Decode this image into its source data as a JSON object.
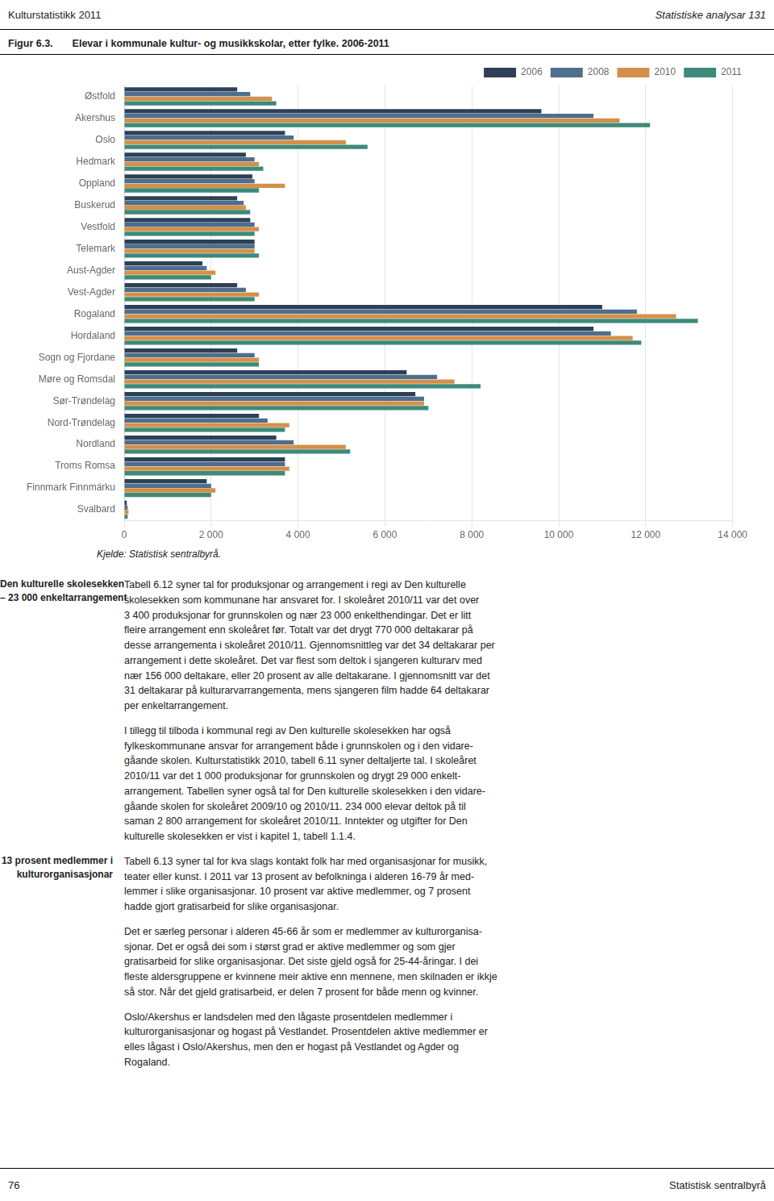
{
  "chart_data": {
    "type": "bar",
    "orientation": "horizontal",
    "title": "Figur 6.3.",
    "subtitle": "Elevar i kommunale kultur- og musikkskolar, etter fylke. 2006-2011",
    "categories": [
      "Østfold",
      "Akershus",
      "Oslo",
      "Hedmark",
      "Oppland",
      "Buskerud",
      "Vestfold",
      "Telemark",
      "Aust-Agder",
      "Vest-Agder",
      "Rogaland",
      "Hordaland",
      "Sogn og Fjordane",
      "Møre og Romsdal",
      "Sør-Trøndelag",
      "Nord-Trøndelag",
      "Nordland",
      "Troms Romsa",
      "Finnmark Finnmárku",
      "Svalbard"
    ],
    "series": [
      {
        "name": "2006",
        "color": "#2E4057",
        "values": [
          2600,
          9600,
          3700,
          2800,
          2950,
          2600,
          2900,
          3000,
          1800,
          2600,
          11000,
          10800,
          2600,
          6500,
          6700,
          3100,
          3500,
          3700,
          1900,
          60
        ]
      },
      {
        "name": "2008",
        "color": "#4E6F8E",
        "values": [
          2900,
          10800,
          3900,
          3000,
          3000,
          2750,
          3000,
          3000,
          1900,
          2800,
          11800,
          11200,
          3000,
          7200,
          6900,
          3300,
          3900,
          3700,
          2000,
          80
        ]
      },
      {
        "name": "2010",
        "color": "#D4904A",
        "values": [
          3400,
          11400,
          5100,
          3100,
          3700,
          2800,
          3100,
          3000,
          2100,
          3100,
          12700,
          11700,
          3100,
          7600,
          6900,
          3800,
          5100,
          3800,
          2100,
          100
        ]
      },
      {
        "name": "2011",
        "color": "#3D8A7A",
        "values": [
          3500,
          12100,
          5600,
          3200,
          3100,
          2900,
          3000,
          3100,
          2000,
          3000,
          13200,
          11900,
          3100,
          8200,
          7000,
          3700,
          5200,
          3700,
          2000,
          80
        ]
      }
    ],
    "xlim": [
      0,
      14000
    ],
    "xticks": [
      0,
      {
        "value": 2000,
        "label": "2 000"
      },
      {
        "value": 4000,
        "label": "4 000"
      },
      {
        "value": 6000,
        "label": "6 000"
      },
      {
        "value": 8000,
        "label": "8 000"
      },
      {
        "value": 10000,
        "label": "10 000"
      },
      {
        "value": 12000,
        "label": "12 000"
      },
      {
        "value": 14000,
        "label": "14 000"
      }
    ],
    "grid": true,
    "legend": "upper right",
    "annotations": [
      "Kulturstatistikk 2011",
      "Statistiske analysar 131",
      "Kjelde: Statistisk sentralbyrå.",
      "Den kulturelle skolesekken\n– 23 000 enkeltarrangement",
      "Tabell 6.12 syner tal for produksjonar og arrangement i regi av Den kulturelle\nskolesekken som kommunane har ansvaret for. I skoleåret 2010/11 var det over\n3 400 produksjonar for grunnskolen og nær 23 000 enkelthendingar. Det er litt\nfleire arrangement enn skoleåret før. Totalt var det drygt 770 000 deltakarar på\ndesse arrangementa i skoleåret 2010/11. Gjennomsnittleg var det 34 deltakarar per\narrangement i dette skoleåret. Det var flest som deltok i sjangeren kulturarv med\nnær 156 000 deltakare, eller 20 prosent av alle deltakarane. I gjennomsnitt var det\n31 deltakarar på kulturarvarrangementa, mens sjangeren film hadde 64 deltakarar\nper enkeltarrangement.",
      "I tillegg til tilboda i kommunal regi av Den kulturelle skolesekken har også\nfylkeskommunane ansvar for arrangement både i grunnskolen og i den vidare-\ngåande skolen. Kulturstatistikk 2010, tabell 6.11 syner deltaljerte tal. I skoleåret\n2010/11 var det 1 000 produksjonar for grunnskolen og drygt 29 000 enkelt-\narrangement. Tabellen syner også tal for Den kulturelle skolesekken i den vidare-\ngåande skolen for skoleåret 2009/10 og 2010/11. 234 000 elevar deltok på til\nsaman 2 800 arrangement for skoleåret 2010/11. Inntekter og utgifter for Den\nkulturelle skolesekken er vist i kapitel 1, tabell 1.1.4.",
      "13 prosent medlemmer i\nkulturorganisasjonar",
      "Tabell 6.13 syner tal for kva slags kontakt folk har med organisasjonar for musikk,\nteater eller kunst. I 2011 var 13 prosent av befolkninga i alderen 16-79 år med-\nlemmer i slike organisasjonar. 10 prosent var aktive medlemmer, og 7 prosent\nhadde gjort gratisarbeid for slike organisasjonar.",
      "Det er særleg personar i alderen 45-66 år som er medlemmer av kulturorganisa-\nsjonar. Det er også dei som i størst grad er aktive medlemmer og som gjer\ngratisarbeid for slike organisasjonar. Det siste gjeld også for 25-44-åringar. I dei\nfleste aldersgruppene er kvinnene meir aktive enn mennene, men skilnaden er ikkje\nså stor. Når det gjeld gratisarbeid, er delen 7 prosent for både menn og kvinner.",
      "Oslo/Akershus er landsdelen med den lågaste prosentdelen medlemmer i\nkulturorganisasjonar og hogast på Vestlandet. Prosentdelen aktive medlemmer er\nelles lågast i Oslo/Akershus, men den er hogast på Vestlandet og Agder og\nRogaland.",
      "76",
      "Statistisk sentralbyrå"
    ]
  }
}
